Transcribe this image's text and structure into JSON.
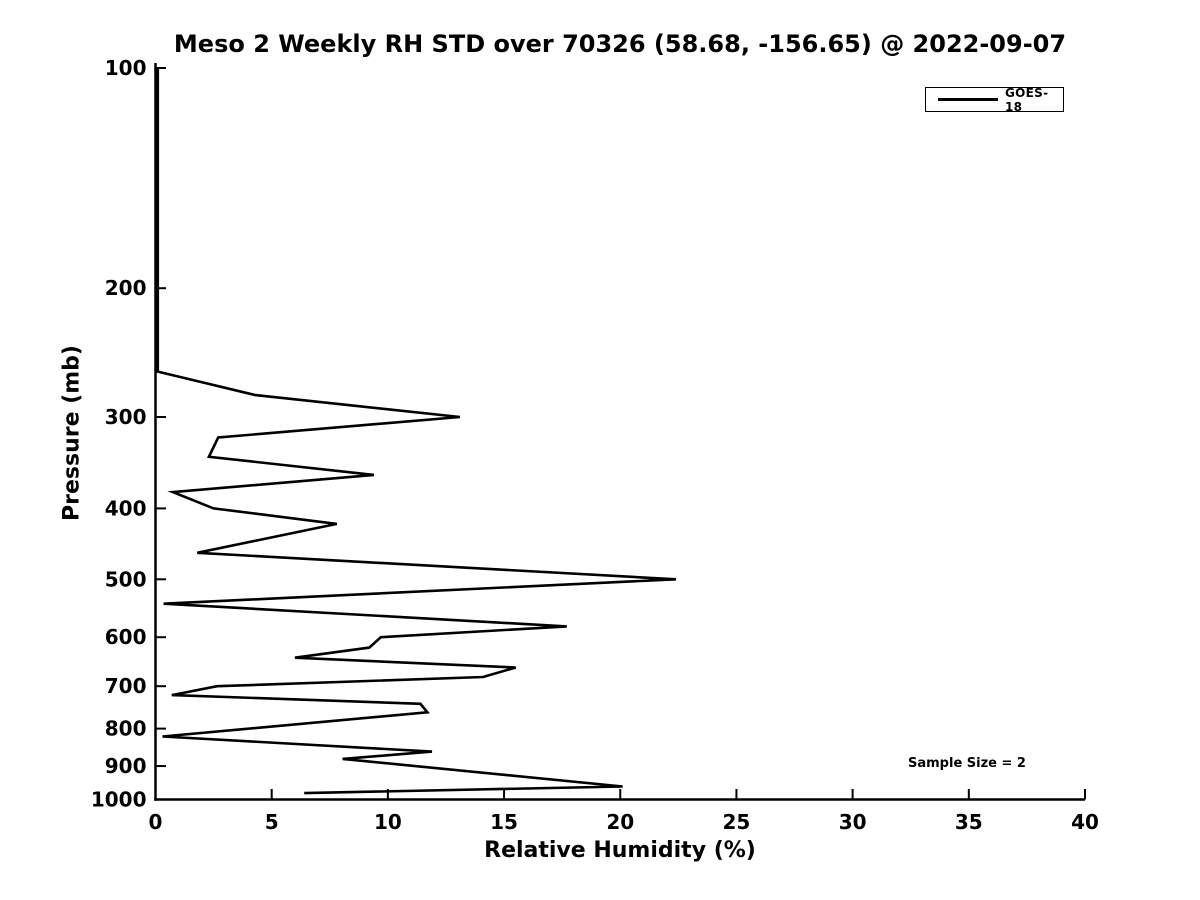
{
  "title": "Meso 2 Weekly RH STD over 70326 (58.68, -156.65) @ 2022-09-07",
  "annotation": {
    "text": "Sample Size = 2"
  },
  "legend": {
    "entries": [
      {
        "label": "GOES-18",
        "color": "#000000"
      }
    ],
    "position": "upper right"
  },
  "chart_data": {
    "type": "line",
    "title": "Meso 2 Weekly RH STD over 70326 (58.68, -156.65) @ 2022-09-07",
    "xlabel": "Relative Humidity (%)",
    "ylabel": "Pressure (mb)",
    "xlim": [
      0,
      40
    ],
    "ylim": [
      1000,
      100
    ],
    "yscale": "log",
    "xticks": [
      0,
      5,
      10,
      15,
      20,
      25,
      30,
      35,
      40
    ],
    "yticks": [
      100,
      200,
      300,
      400,
      500,
      600,
      700,
      800,
      900,
      1000
    ],
    "grid": false,
    "legend_position": "upper right",
    "annotations": [
      {
        "text": "Sample Size = 2",
        "rh_pct": 35,
        "pressure_mb": 900
      }
    ],
    "series": [
      {
        "name": "GOES-18",
        "color": "#000000",
        "points": [
          {
            "pressure_mb": 100,
            "rh_pct": 0.1
          },
          {
            "pressure_mb": 260,
            "rh_pct": 0.1
          },
          {
            "pressure_mb": 280,
            "rh_pct": 4.3
          },
          {
            "pressure_mb": 300,
            "rh_pct": 13.1
          },
          {
            "pressure_mb": 320,
            "rh_pct": 2.7
          },
          {
            "pressure_mb": 340,
            "rh_pct": 2.3
          },
          {
            "pressure_mb": 360,
            "rh_pct": 9.4
          },
          {
            "pressure_mb": 380,
            "rh_pct": 0.75
          },
          {
            "pressure_mb": 400,
            "rh_pct": 2.5
          },
          {
            "pressure_mb": 420,
            "rh_pct": 7.8
          },
          {
            "pressure_mb": 460,
            "rh_pct": 1.8
          },
          {
            "pressure_mb": 500,
            "rh_pct": 22.4
          },
          {
            "pressure_mb": 540,
            "rh_pct": 0.35
          },
          {
            "pressure_mb": 580,
            "rh_pct": 17.7
          },
          {
            "pressure_mb": 600,
            "rh_pct": 9.7
          },
          {
            "pressure_mb": 620,
            "rh_pct": 9.2
          },
          {
            "pressure_mb": 640,
            "rh_pct": 6.0
          },
          {
            "pressure_mb": 660,
            "rh_pct": 15.5
          },
          {
            "pressure_mb": 680,
            "rh_pct": 14.1
          },
          {
            "pressure_mb": 700,
            "rh_pct": 2.65
          },
          {
            "pressure_mb": 720,
            "rh_pct": 0.7
          },
          {
            "pressure_mb": 740,
            "rh_pct": 11.4
          },
          {
            "pressure_mb": 760,
            "rh_pct": 11.7
          },
          {
            "pressure_mb": 820,
            "rh_pct": 0.3
          },
          {
            "pressure_mb": 860,
            "rh_pct": 11.9
          },
          {
            "pressure_mb": 880,
            "rh_pct": 8.05
          },
          {
            "pressure_mb": 960,
            "rh_pct": 20.1
          },
          {
            "pressure_mb": 980,
            "rh_pct": 6.4
          }
        ]
      }
    ]
  }
}
